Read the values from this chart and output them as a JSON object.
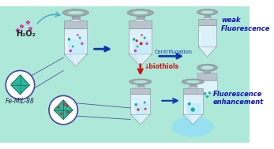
{
  "bg_color": "#aee8d8",
  "h2o2_text": "H₂O₂",
  "femil_text": "Fe-MIL-88",
  "centrifugation_text": "Centrifugation",
  "biothiols_text": "↓biothiols",
  "weak_fluor_text": "weak\nFluorescence",
  "fluor_enhance_text": "Fluorescence\nenhancement",
  "tube_body_color": "#ddf0f8",
  "tube_cap_color": "#b8c4cc",
  "tube_ring_outer": "#a0a8b0",
  "tube_ring_inner": "#e0e8f0",
  "tube_edge_color": "#888899",
  "arrow_color": "#1133aa",
  "arrow_down_color": "#cc1111",
  "crystal_color": "#2ab8a0",
  "crystal_edge": "#1a7860",
  "pink_dots_color": "#cc44aa",
  "red_dots_color": "#dd2222",
  "teal_dots_color": "#22aaaa",
  "weak_fluor_color": "#1111bb",
  "fluor_enhance_color": "#1111bb",
  "femil_text_color": "#222244",
  "glow_color": "#88ddff",
  "circle_border_color": "#4444aa",
  "liquid_color": "#c0ecf8",
  "stem_color": "#a0a8b0"
}
